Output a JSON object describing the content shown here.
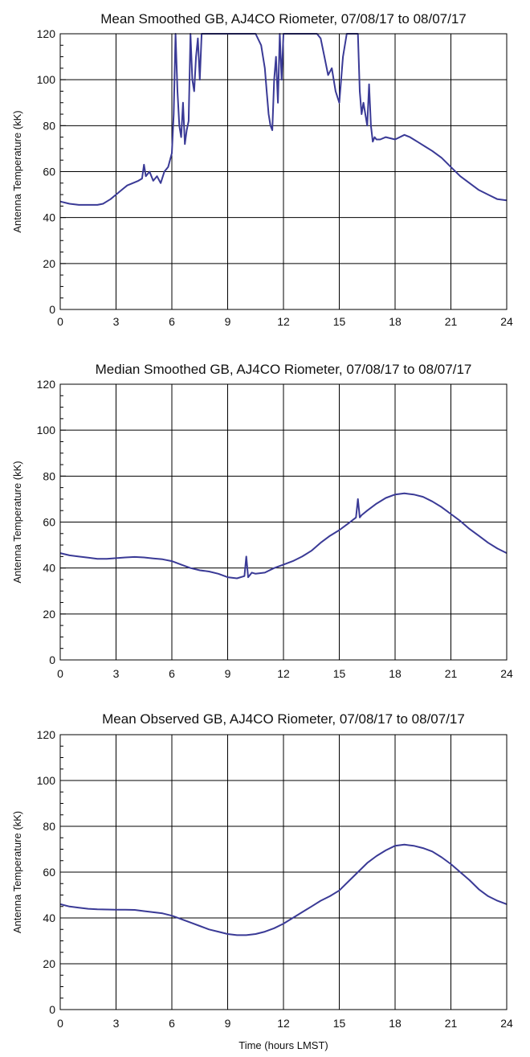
{
  "figure": {
    "xlabel": "Time (hours LMST)"
  },
  "style": {
    "line_color": "#3a3a96",
    "grid_color": "#000000",
    "background": "#ffffff"
  },
  "chart_data": [
    {
      "type": "line",
      "title": "Mean Smoothed GB, AJ4CO Riometer, 07/08/17 to 08/07/17",
      "ylabel": "Antenna Temperature (kK)",
      "xlabel": "",
      "xlim": [
        0,
        24
      ],
      "ylim": [
        0,
        120
      ],
      "xticks": [
        0,
        3,
        6,
        9,
        12,
        15,
        18,
        21,
        24
      ],
      "yticks": [
        0,
        20,
        40,
        60,
        80,
        100,
        120
      ],
      "grid": true,
      "series": [
        {
          "x": [
            0,
            0.5,
            1.0,
            1.5,
            2.0,
            2.3,
            2.5,
            2.7,
            3.0,
            3.3,
            3.6,
            3.9,
            4.2,
            4.4,
            4.5,
            4.6,
            4.8,
            5.0,
            5.2,
            5.4,
            5.6,
            5.8,
            6.0,
            6.1,
            6.2,
            6.3,
            6.4,
            6.5,
            6.6,
            6.7,
            6.8,
            6.9,
            7.0,
            7.1,
            7.2,
            7.3,
            7.4,
            7.5,
            7.6,
            7.8,
            8.0,
            8.5,
            9.0,
            9.5,
            10.0,
            10.5,
            10.8,
            11.0,
            11.1,
            11.2,
            11.3,
            11.4,
            11.5,
            11.6,
            11.7,
            11.8,
            11.9,
            12.0,
            12.5,
            13.0,
            13.5,
            13.8,
            14.0,
            14.2,
            14.4,
            14.6,
            14.8,
            15.0,
            15.2,
            15.4,
            15.6,
            15.8,
            16.0,
            16.1,
            16.2,
            16.3,
            16.5,
            16.6,
            16.7,
            16.8,
            16.9,
            17.0,
            17.2,
            17.5,
            18.0,
            18.5,
            18.8,
            19.0,
            19.2,
            19.4,
            19.6,
            20.0,
            20.5,
            21.0,
            21.5,
            22.0,
            22.5,
            23.0,
            23.5,
            24.0
          ],
          "y": [
            47,
            46,
            45.5,
            45.5,
            45.5,
            46,
            47,
            48,
            50,
            52,
            54,
            55,
            56,
            57,
            63,
            58,
            60,
            56,
            58,
            55,
            60,
            62,
            68,
            85,
            120,
            95,
            80,
            75,
            90,
            72,
            78,
            82,
            120,
            100,
            95,
            110,
            118,
            100,
            120,
            120,
            120,
            120,
            120,
            120,
            120,
            120,
            115,
            105,
            95,
            85,
            80,
            78,
            100,
            110,
            90,
            120,
            100,
            120,
            120,
            120,
            120,
            120,
            118,
            110,
            102,
            105,
            95,
            90,
            110,
            120,
            120,
            120,
            120,
            95,
            85,
            90,
            80,
            98,
            80,
            73,
            75,
            74,
            74,
            75,
            74,
            76,
            75,
            74,
            73,
            72,
            71,
            69,
            66,
            62,
            58,
            55,
            52,
            50,
            48,
            47.5
          ]
        }
      ]
    },
    {
      "type": "line",
      "title": "Median Smoothed GB, AJ4CO Riometer, 07/08/17 to 08/07/17",
      "ylabel": "Antenna Temperature (kK)",
      "xlabel": "",
      "xlim": [
        0,
        24
      ],
      "ylim": [
        0,
        120
      ],
      "xticks": [
        0,
        3,
        6,
        9,
        12,
        15,
        18,
        21,
        24
      ],
      "yticks": [
        0,
        20,
        40,
        60,
        80,
        100,
        120
      ],
      "grid": true,
      "series": [
        {
          "x": [
            0,
            0.5,
            1.0,
            1.5,
            2.0,
            2.5,
            3.0,
            3.5,
            4.0,
            4.5,
            5.0,
            5.5,
            6.0,
            6.5,
            7.0,
            7.5,
            8.0,
            8.5,
            9.0,
            9.5,
            9.9,
            10.0,
            10.1,
            10.2,
            10.3,
            10.5,
            11.0,
            11.5,
            12.0,
            12.5,
            13.0,
            13.5,
            14.0,
            14.5,
            15.0,
            15.5,
            15.9,
            16.0,
            16.1,
            16.2,
            16.5,
            17.0,
            17.5,
            18.0,
            18.5,
            19.0,
            19.5,
            20.0,
            20.5,
            21.0,
            21.5,
            22.0,
            22.5,
            23.0,
            23.5,
            24.0
          ],
          "y": [
            46.5,
            45.5,
            45,
            44.5,
            44,
            44,
            44.3,
            44.6,
            44.8,
            44.6,
            44.2,
            43.8,
            43,
            41.5,
            40,
            39,
            38.5,
            37.5,
            36,
            35.5,
            36.5,
            45,
            36,
            37,
            38,
            37.5,
            38,
            40,
            41.5,
            43,
            45,
            47.5,
            51,
            54,
            56.5,
            59.5,
            62,
            70,
            62,
            63,
            65,
            68,
            70.5,
            72,
            72.5,
            72,
            71,
            69,
            66.5,
            63.5,
            60.5,
            57,
            54,
            51,
            48.5,
            46.5
          ]
        }
      ]
    },
    {
      "type": "line",
      "title": "Mean Observed GB, AJ4CO Riometer, 07/08/17 to 08/07/17",
      "ylabel": "Antenna Temperature (kK)",
      "xlabel": "Time (hours LMST)",
      "xlim": [
        0,
        24
      ],
      "ylim": [
        0,
        120
      ],
      "xticks": [
        0,
        3,
        6,
        9,
        12,
        15,
        18,
        21,
        24
      ],
      "yticks": [
        0,
        20,
        40,
        60,
        80,
        100,
        120
      ],
      "grid": true,
      "series": [
        {
          "x": [
            0,
            0.5,
            1.0,
            1.5,
            2.0,
            2.5,
            3.0,
            3.5,
            4.0,
            4.5,
            5.0,
            5.5,
            6.0,
            6.5,
            7.0,
            7.5,
            8.0,
            8.5,
            9.0,
            9.5,
            10.0,
            10.5,
            11.0,
            11.5,
            12.0,
            12.5,
            13.0,
            13.5,
            14.0,
            14.5,
            15.0,
            15.5,
            16.0,
            16.5,
            17.0,
            17.5,
            18.0,
            18.5,
            19.0,
            19.5,
            20.0,
            20.5,
            21.0,
            21.5,
            22.0,
            22.5,
            23.0,
            23.5,
            24.0
          ],
          "y": [
            46,
            45,
            44.5,
            44,
            43.8,
            43.7,
            43.6,
            43.6,
            43.5,
            43,
            42.5,
            42,
            41,
            39.5,
            38,
            36.5,
            35,
            34,
            33,
            32.5,
            32.5,
            33,
            34,
            35.5,
            37.5,
            40,
            42.5,
            45,
            47.5,
            49.5,
            52,
            56,
            60,
            64,
            67,
            69.5,
            71.5,
            72,
            71.5,
            70.5,
            69,
            66.5,
            63.5,
            60,
            56.5,
            52.5,
            49.5,
            47.5,
            46
          ]
        }
      ]
    }
  ]
}
